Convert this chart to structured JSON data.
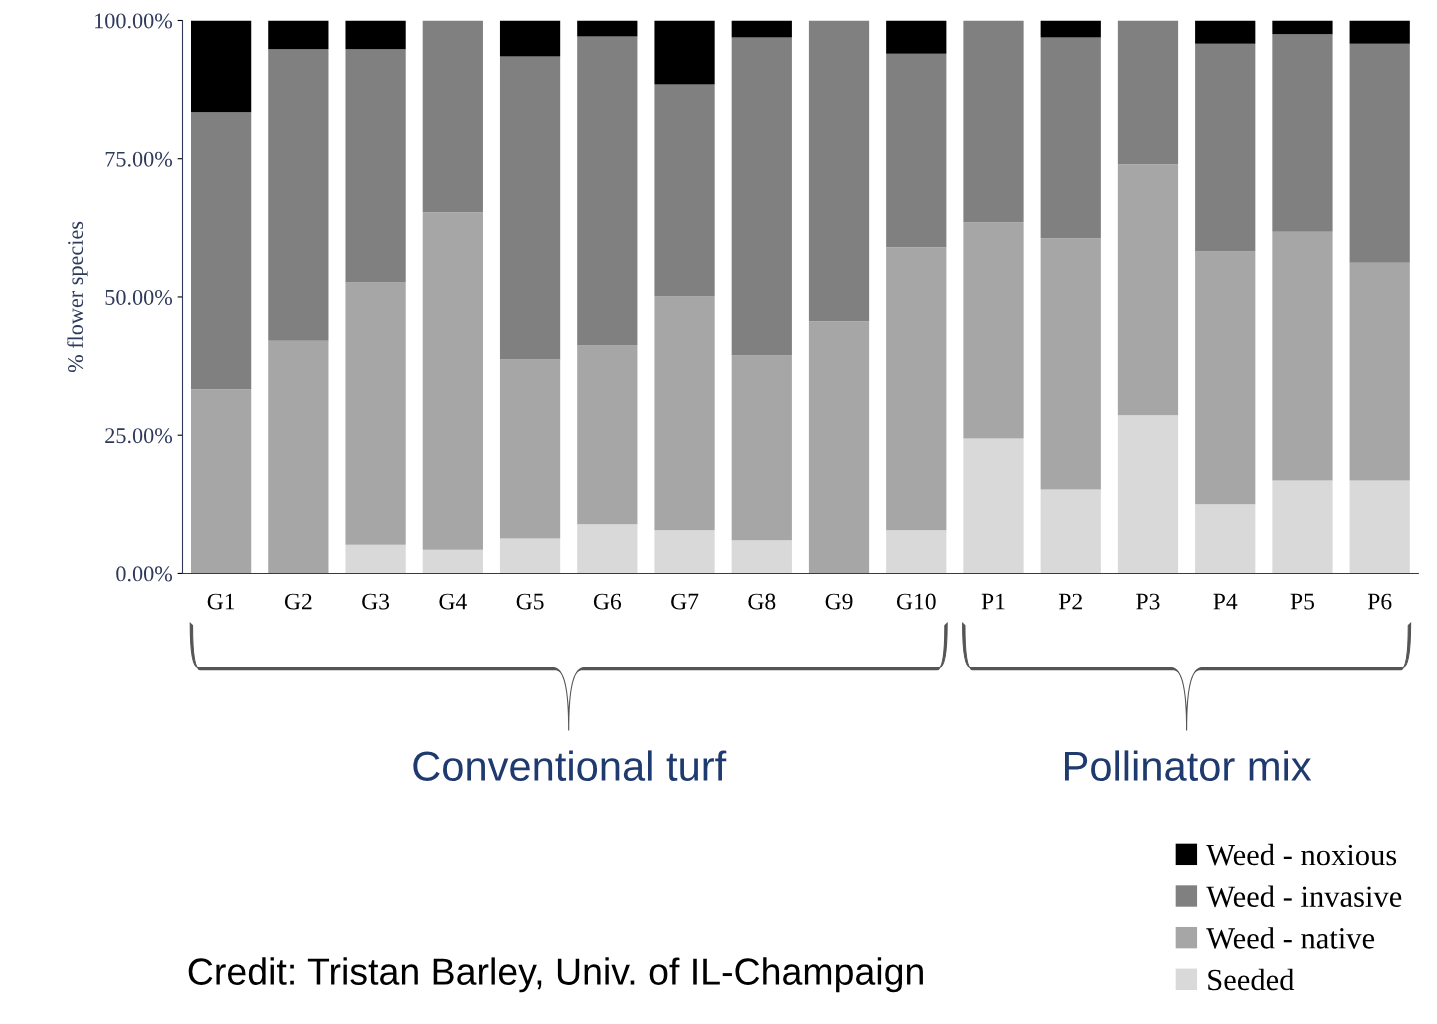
{
  "chart_data": {
    "type": "bar",
    "stacked": true,
    "ylabel": "% flower species",
    "categories": [
      "G1",
      "G2",
      "G3",
      "G4",
      "G5",
      "G6",
      "G7",
      "G8",
      "G9",
      "G10",
      "P1",
      "P2",
      "P3",
      "P4",
      "P5",
      "P6"
    ],
    "series": [
      {
        "name": "Seeded",
        "color": "#d9d9d9",
        "values": [
          0,
          0,
          5.2,
          4.3,
          6.3,
          8.9,
          7.8,
          6.0,
          0,
          7.8,
          24.4,
          15.2,
          28.6,
          12.5,
          16.8,
          16.8
        ]
      },
      {
        "name": "Weed - native",
        "color": "#a6a6a6",
        "values": [
          33.3,
          42.1,
          47.4,
          61.0,
          32.4,
          32.3,
          42.3,
          33.4,
          45.6,
          51.2,
          39.1,
          45.4,
          45.4,
          45.7,
          45.0,
          39.4
        ]
      },
      {
        "name": "Weed - invasive",
        "color": "#808080",
        "values": [
          50.1,
          52.7,
          42.2,
          34.7,
          54.8,
          55.9,
          38.3,
          57.5,
          54.4,
          35.0,
          36.5,
          36.3,
          26.0,
          37.6,
          35.7,
          39.6
        ]
      },
      {
        "name": "Weed - noxious",
        "color": "#000000",
        "values": [
          16.6,
          5.2,
          5.2,
          0,
          6.5,
          2.9,
          11.6,
          3.1,
          0,
          6.0,
          0,
          3.1,
          0,
          4.2,
          2.5,
          4.2
        ]
      }
    ],
    "ylim": [
      0,
      100
    ],
    "yticks": [
      {
        "value": 0,
        "label": "0.00%"
      },
      {
        "value": 25,
        "label": "25.00%"
      },
      {
        "value": 50,
        "label": "50.00%"
      },
      {
        "value": 75,
        "label": "75.00%"
      },
      {
        "value": 100,
        "label": "100.00%"
      }
    ],
    "grid": false,
    "legend": "bottom right",
    "annotations": [
      "Conventional turf",
      "Pollinator mix",
      "Credit: Tristan Barley, Univ. of IL-Champaign"
    ]
  }
}
